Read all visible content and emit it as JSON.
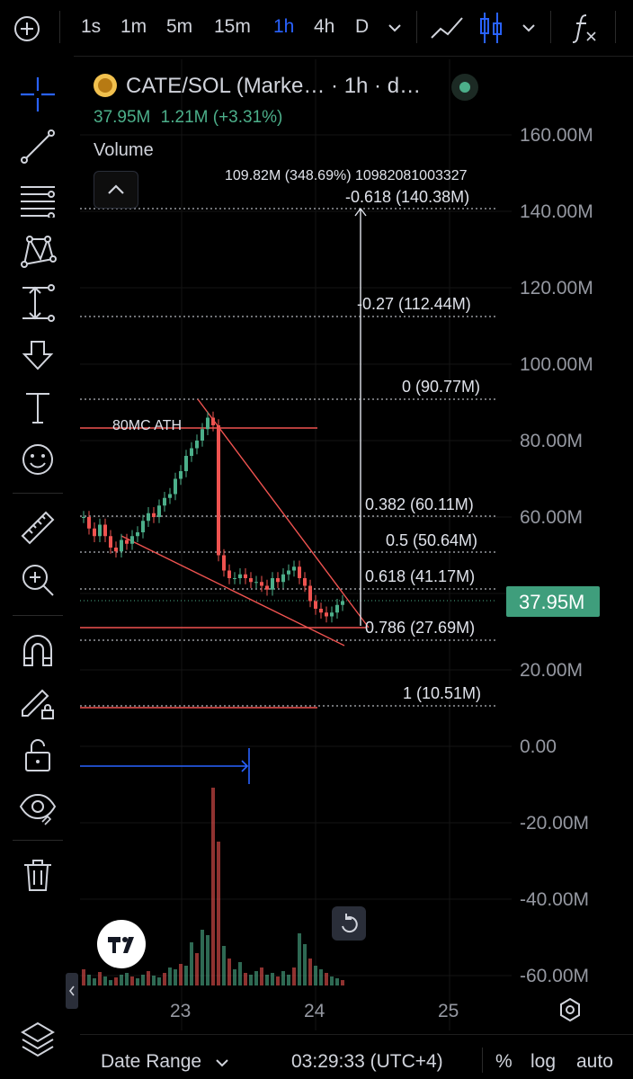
{
  "toolbar": {
    "timeframes": [
      "1s",
      "1m",
      "5m",
      "15m",
      "1h",
      "4h",
      "D"
    ],
    "active_timeframe": "1h",
    "active_color": "#2962ff"
  },
  "legend": {
    "symbol": "CATE/SOL (Marke…  · 1h · d…",
    "price": "37.95M",
    "change": "1.21M (+3.31%)",
    "volume_label": "Volume",
    "up_color": "#4caf8a",
    "down_color": "#ef5350"
  },
  "price_axis": [
    "160.00M",
    "140.00M",
    "120.00M",
    "100.00M",
    "80.00M",
    "60.00M",
    "20.00M",
    "0.00",
    "-20.00M",
    "-40.00M",
    "-60.00M"
  ],
  "current_price_badge": "37.95M",
  "fib_levels": [
    "-0.618 (140.38M)",
    "-0.27 (112.44M)",
    "0 (90.77M)",
    "0.382 (60.11M)",
    "0.5 (50.64M)",
    "0.618 (41.17M)",
    "0.786 (27.69M)",
    "1 (10.51M)"
  ],
  "measure_label": "109.82M (348.69%) 10982081003327",
  "ath_label": "80MC ATH",
  "time_axis": [
    "23",
    "24",
    "25"
  ],
  "bottom": {
    "date_range": "Date Range",
    "clock": "03:29:33 (UTC+4)",
    "percent": "%",
    "log": "log",
    "auto": "auto"
  },
  "icons": [
    "add-icon",
    "line-chart-icon",
    "candles-icon",
    "chevron-down-icon",
    "fx-icon",
    "crosshair-icon",
    "trendline-icon",
    "fib-icon",
    "pattern-icon",
    "measure-icon",
    "arrow-down-icon",
    "text-icon",
    "emoji-icon",
    "ruler-icon",
    "zoom-in-icon",
    "magnet-icon",
    "pencil-lock-icon",
    "unlock-icon",
    "eye-icon",
    "trash-icon",
    "layers-icon",
    "reset-icon",
    "settings-icon",
    "tv-logo-icon",
    "collapse-icon"
  ]
}
